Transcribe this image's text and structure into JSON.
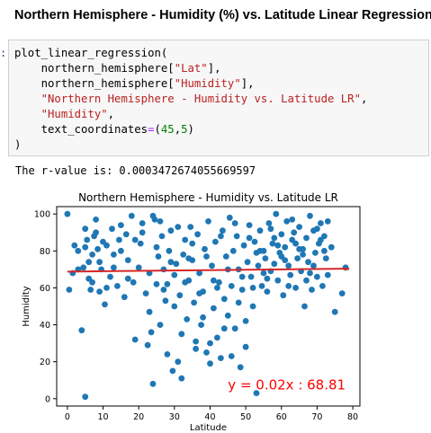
{
  "notebook": {
    "heading": "Northern Hemisphere - Humidity (%) vs. Latitude Linear Regression",
    "prompt_mark": ":",
    "code_lines": [
      [
        {
          "t": "plot_linear_regression(",
          "c": ""
        }
      ],
      [
        {
          "t": "    northern_hemisphere[",
          "c": ""
        },
        {
          "t": "\"Lat\"",
          "c": "str"
        },
        {
          "t": "],",
          "c": ""
        }
      ],
      [
        {
          "t": "    northern_hemisphere[",
          "c": ""
        },
        {
          "t": "\"Humidity\"",
          "c": "str"
        },
        {
          "t": "],",
          "c": ""
        }
      ],
      [
        {
          "t": "    ",
          "c": ""
        },
        {
          "t": "\"Northern Hemisphere - Humidity vs. Latitude LR\"",
          "c": "str"
        },
        {
          "t": ",",
          "c": ""
        }
      ],
      [
        {
          "t": "    ",
          "c": ""
        },
        {
          "t": "\"Humidity\"",
          "c": "str"
        },
        {
          "t": ",",
          "c": ""
        }
      ],
      [
        {
          "t": "    text_coordinates",
          "c": ""
        },
        {
          "t": "=",
          "c": "op"
        },
        {
          "t": "(",
          "c": ""
        },
        {
          "t": "45",
          "c": "num"
        },
        {
          "t": ",",
          "c": ""
        },
        {
          "t": "5",
          "c": "num"
        },
        {
          "t": ")",
          "c": ""
        }
      ],
      [
        {
          "t": ")",
          "c": ""
        }
      ]
    ],
    "output_label": "The r-value is:",
    "output_value": "0.0003472674055669597"
  },
  "colors": {
    "points": "#1f77b4",
    "regression_line": "#d62728",
    "annotation": "#ff0000",
    "code_string": "#ba2121",
    "code_number": "#008000",
    "code_operator": "#aa22ff"
  },
  "chart_data": {
    "type": "scatter",
    "title": "Northern Hemisphere - Humidity vs. Latitude LR",
    "xlabel": "Latitude",
    "ylabel": "Humidity",
    "xlim": [
      -3,
      82
    ],
    "ylim": [
      -4,
      104
    ],
    "xticks": [
      0,
      10,
      20,
      30,
      40,
      50,
      60,
      70,
      80
    ],
    "yticks": [
      0,
      20,
      40,
      60,
      80,
      100
    ],
    "grid": false,
    "regression": {
      "slope": 0.02,
      "intercept": 68.81,
      "x_range": [
        0,
        79
      ],
      "equation": "y = 0.02x : 68.81",
      "label_at": [
        45,
        5
      ]
    },
    "points": [
      [
        0,
        100
      ],
      [
        0.5,
        59
      ],
      [
        2,
        83
      ],
      [
        3,
        80
      ],
      [
        4,
        37
      ],
      [
        4.5,
        71
      ],
      [
        5,
        1
      ],
      [
        5,
        92
      ],
      [
        5.5,
        86
      ],
      [
        6,
        65
      ],
      [
        6.5,
        59
      ],
      [
        7,
        78
      ],
      [
        7.5,
        88
      ],
      [
        8,
        97
      ],
      [
        8.5,
        81
      ],
      [
        9,
        58
      ],
      [
        9.5,
        70
      ],
      [
        10,
        85
      ],
      [
        3,
        70
      ],
      [
        5,
        82
      ],
      [
        7,
        63
      ],
      [
        9,
        74
      ],
      [
        10.5,
        51
      ],
      [
        11,
        83
      ],
      [
        12,
        66
      ],
      [
        12.5,
        92
      ],
      [
        13,
        78
      ],
      [
        14,
        61
      ],
      [
        14.5,
        86
      ],
      [
        15,
        94
      ],
      [
        16,
        55
      ],
      [
        16.5,
        89
      ],
      [
        17,
        75
      ],
      [
        18,
        99
      ],
      [
        18.5,
        63
      ],
      [
        19,
        32
      ],
      [
        20,
        71
      ],
      [
        20.5,
        84
      ],
      [
        21,
        90
      ],
      [
        22,
        57
      ],
      [
        22.5,
        29
      ],
      [
        23,
        47
      ],
      [
        23.5,
        36
      ],
      [
        24,
        8
      ],
      [
        24.5,
        97
      ],
      [
        25,
        62
      ],
      [
        25.5,
        77
      ],
      [
        26,
        96
      ],
      [
        26.5,
        88
      ],
      [
        27,
        70
      ],
      [
        27.5,
        53
      ],
      [
        28,
        24
      ],
      [
        28.5,
        80
      ],
      [
        29,
        91
      ],
      [
        29.5,
        15
      ],
      [
        30,
        67
      ],
      [
        30.5,
        73
      ],
      [
        31,
        20
      ],
      [
        31.5,
        56
      ],
      [
        32,
        11
      ],
      [
        32.5,
        78
      ],
      [
        33,
        86
      ],
      [
        33.5,
        43
      ],
      [
        34,
        64
      ],
      [
        34.5,
        93
      ],
      [
        35,
        75
      ],
      [
        35.5,
        52
      ],
      [
        36,
        31
      ],
      [
        36.5,
        89
      ],
      [
        37,
        68
      ],
      [
        37.5,
        40
      ],
      [
        38,
        58
      ],
      [
        38.5,
        81
      ],
      [
        39,
        25
      ],
      [
        39.5,
        96
      ],
      [
        40,
        19
      ],
      [
        40.5,
        72
      ],
      [
        41,
        49
      ],
      [
        41.5,
        85
      ],
      [
        42,
        33
      ],
      [
        42.5,
        63
      ],
      [
        43,
        22
      ],
      [
        43.5,
        91
      ],
      [
        44,
        54
      ],
      [
        44.5,
        77
      ],
      [
        45,
        45
      ],
      [
        45.5,
        98
      ],
      [
        46,
        61
      ],
      [
        46.5,
        80
      ],
      [
        47,
        38
      ],
      [
        47.5,
        88
      ],
      [
        48,
        70
      ],
      [
        48.5,
        17
      ],
      [
        49,
        59
      ],
      [
        49.5,
        83
      ],
      [
        50,
        28
      ],
      [
        50.5,
        74
      ],
      [
        51,
        94
      ],
      [
        51.5,
        66
      ],
      [
        52,
        50
      ],
      [
        52.5,
        85
      ],
      [
        53,
        3
      ],
      [
        53.5,
        72
      ],
      [
        54,
        91
      ],
      [
        54.5,
        61
      ],
      [
        55,
        80
      ],
      [
        55.5,
        76
      ],
      [
        56,
        58
      ],
      [
        56.5,
        95
      ],
      [
        57,
        69
      ],
      [
        57.5,
        84
      ],
      [
        58,
        73
      ],
      [
        58.5,
        100
      ],
      [
        59,
        64
      ],
      [
        59.5,
        79
      ],
      [
        60,
        89
      ],
      [
        60.5,
        56
      ],
      [
        61,
        82
      ],
      [
        61.5,
        96
      ],
      [
        62,
        72
      ],
      [
        62.5,
        67
      ],
      [
        63,
        86
      ],
      [
        63.5,
        90
      ],
      [
        64,
        60
      ],
      [
        64.5,
        76
      ],
      [
        65,
        93
      ],
      [
        65.5,
        69
      ],
      [
        66,
        81
      ],
      [
        66.5,
        50
      ],
      [
        67,
        87
      ],
      [
        67.5,
        74
      ],
      [
        68,
        99
      ],
      [
        68.5,
        59
      ],
      [
        69,
        91
      ],
      [
        69.5,
        79
      ],
      [
        70,
        66
      ],
      [
        70.5,
        84
      ],
      [
        71,
        95
      ],
      [
        71.5,
        61
      ],
      [
        72,
        88
      ],
      [
        72.5,
        76
      ],
      [
        73,
        96
      ],
      [
        74,
        82
      ],
      [
        75,
        47
      ],
      [
        77,
        57
      ],
      [
        78,
        71
      ],
      [
        1.5,
        68
      ],
      [
        6,
        74
      ],
      [
        8,
        90
      ],
      [
        11,
        60
      ],
      [
        13,
        71
      ],
      [
        15,
        80
      ],
      [
        17,
        65
      ],
      [
        19,
        86
      ],
      [
        21,
        95
      ],
      [
        23,
        68
      ],
      [
        25,
        82
      ],
      [
        27,
        59
      ],
      [
        29,
        74
      ],
      [
        31,
        93
      ],
      [
        33,
        63
      ],
      [
        35,
        84
      ],
      [
        37,
        57
      ],
      [
        39,
        77
      ],
      [
        41,
        64
      ],
      [
        43,
        88
      ],
      [
        45,
        70
      ],
      [
        47,
        95
      ],
      [
        49,
        66
      ],
      [
        51,
        87
      ],
      [
        53,
        79
      ],
      [
        55,
        68
      ],
      [
        57,
        92
      ],
      [
        59,
        83
      ],
      [
        61,
        75
      ],
      [
        63,
        97
      ],
      [
        65,
        81
      ],
      [
        67,
        64
      ],
      [
        69,
        72
      ],
      [
        71,
        86
      ],
      [
        73,
        67
      ],
      [
        24,
        99
      ],
      [
        26,
        40
      ],
      [
        28,
        62
      ],
      [
        30,
        50
      ],
      [
        32,
        35
      ],
      [
        34,
        76
      ],
      [
        36,
        27
      ],
      [
        38,
        44
      ],
      [
        40,
        30
      ],
      [
        42,
        60
      ],
      [
        44,
        38
      ],
      [
        46,
        23
      ],
      [
        48,
        52
      ],
      [
        50,
        42
      ],
      [
        52,
        60
      ],
      [
        54,
        80
      ],
      [
        56,
        65
      ],
      [
        58,
        87
      ],
      [
        60,
        77
      ],
      [
        62,
        61
      ],
      [
        64,
        84
      ],
      [
        66,
        78
      ],
      [
        68,
        68
      ],
      [
        70,
        92
      ],
      [
        72,
        80
      ]
    ]
  }
}
